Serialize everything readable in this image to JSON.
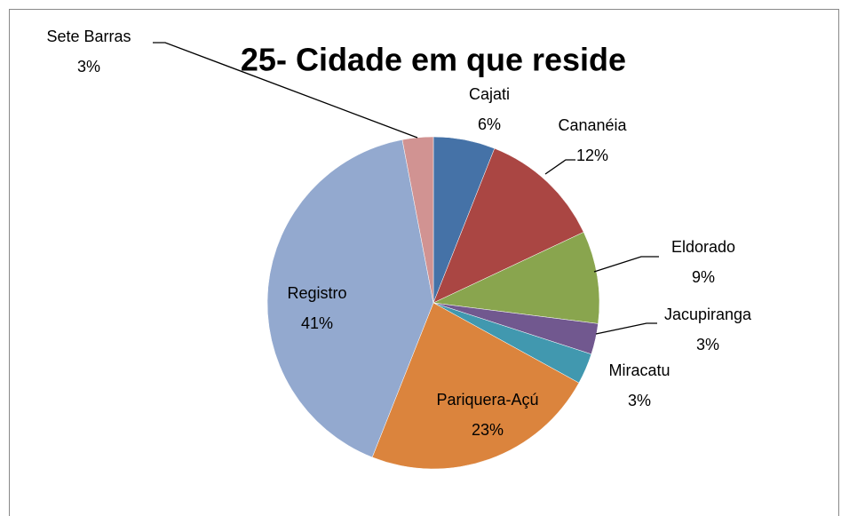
{
  "chart_data": {
    "type": "pie",
    "title": "25- Cidade em que reside",
    "categories": [
      "Cajati",
      "Cananéia",
      "Eldorado",
      "Jacupiranga",
      "Miracatu",
      "Pariquera-Açú",
      "Registro",
      "Sete Barras"
    ],
    "values": [
      6,
      12,
      9,
      3,
      3,
      23,
      41,
      3
    ],
    "value_labels": [
      "6%",
      "12%",
      "9%",
      "3%",
      "3%",
      "23%",
      "41%",
      "3%"
    ],
    "colors": [
      "#4572a7",
      "#aa4643",
      "#89a54e",
      "#71588f",
      "#4198af",
      "#db843d",
      "#93a9cf",
      "#d19392"
    ]
  }
}
